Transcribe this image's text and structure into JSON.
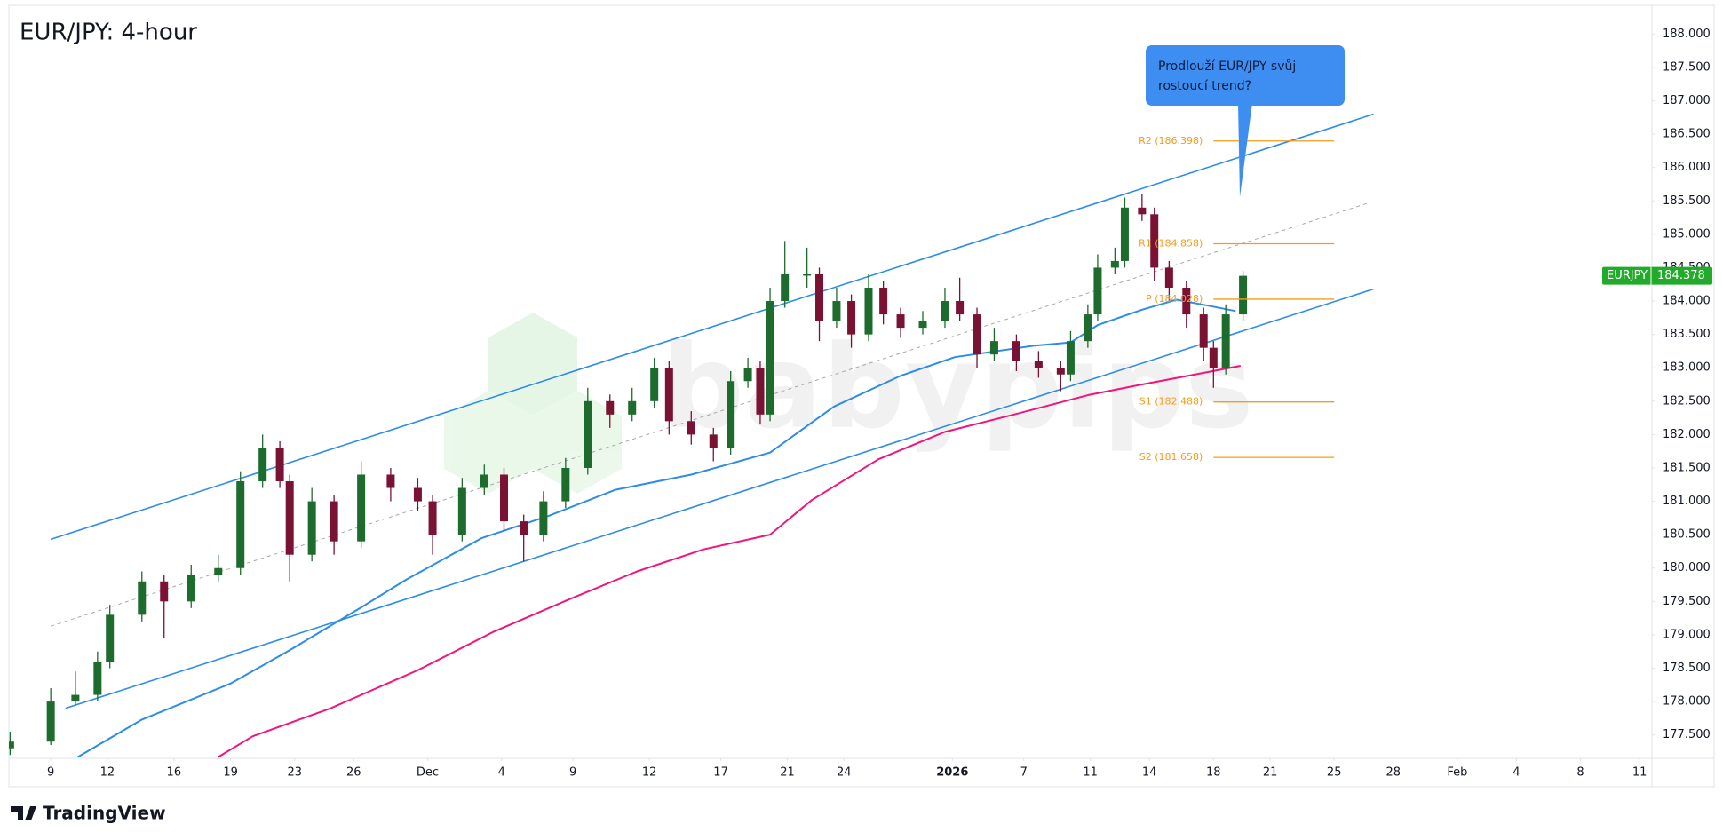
{
  "chart_data": {
    "type": "candlestick",
    "title": "EUR/JPY: 4-hour",
    "watermark": "babypips",
    "brand": "TradingView",
    "up_color": "#1e6b2e",
    "down_color": "#7a1233",
    "xlim": [
      -1.7,
      65.0
    ],
    "ylim": [
      177.15,
      188.43
    ],
    "xticks": [
      {
        "value": 0,
        "label": "9"
      },
      {
        "value": 2.3,
        "label": "12"
      },
      {
        "value": 5.0,
        "label": "16"
      },
      {
        "value": 7.3,
        "label": "19"
      },
      {
        "value": 9.9,
        "label": "23"
      },
      {
        "value": 12.3,
        "label": "26"
      },
      {
        "value": 15.3,
        "label": "Dec"
      },
      {
        "value": 18.3,
        "label": "4"
      },
      {
        "value": 21.2,
        "label": "9"
      },
      {
        "value": 24.3,
        "label": "12"
      },
      {
        "value": 27.2,
        "label": "17"
      },
      {
        "value": 29.9,
        "label": "21"
      },
      {
        "value": 32.2,
        "label": "24"
      },
      {
        "value": 36.6,
        "label": "2026",
        "bold": true
      },
      {
        "value": 39.5,
        "label": "7"
      },
      {
        "value": 42.2,
        "label": "11"
      },
      {
        "value": 44.6,
        "label": "14"
      },
      {
        "value": 47.2,
        "label": "18"
      },
      {
        "value": 49.5,
        "label": "21"
      },
      {
        "value": 52.1,
        "label": "25"
      },
      {
        "value": 54.5,
        "label": "28"
      },
      {
        "value": 57.1,
        "label": "Feb"
      },
      {
        "value": 59.5,
        "label": "4"
      },
      {
        "value": 62.1,
        "label": "8"
      },
      {
        "value": 64.5,
        "label": "11"
      }
    ],
    "yticks": [
      {
        "value": 188,
        "label": "188.000"
      },
      {
        "value": 187.5,
        "label": "187.500"
      },
      {
        "value": 187,
        "label": "187.000"
      },
      {
        "value": 186.5,
        "label": "186.500"
      },
      {
        "value": 186,
        "label": "186.000"
      },
      {
        "value": 185.5,
        "label": "185.500"
      },
      {
        "value": 185,
        "label": "185.000"
      },
      {
        "value": 184.5,
        "label": "184.500"
      },
      {
        "value": 184,
        "label": "184.000"
      },
      {
        "value": 183.5,
        "label": "183.500"
      },
      {
        "value": 183,
        "label": "183.000"
      },
      {
        "value": 182.5,
        "label": "182.500"
      },
      {
        "value": 182,
        "label": "182.000"
      },
      {
        "value": 181.5,
        "label": "181.500"
      },
      {
        "value": 181,
        "label": "181.000"
      },
      {
        "value": 180.5,
        "label": "180.500"
      },
      {
        "value": 180,
        "label": "180.000"
      },
      {
        "value": 179.5,
        "label": "179.500"
      },
      {
        "value": 179,
        "label": "179.000"
      },
      {
        "value": 178.5,
        "label": "178.500"
      },
      {
        "value": 178,
        "label": "178.000"
      },
      {
        "value": 177.5,
        "label": "177.500"
      }
    ],
    "candles": [
      {
        "x": -1.65,
        "open": 177.3,
        "high": 177.55,
        "low": 177.2,
        "close": 177.4
      },
      {
        "x": 0,
        "open": 177.4,
        "high": 178.2,
        "low": 177.35,
        "close": 178.0
      },
      {
        "x": 1.0,
        "open": 178.0,
        "high": 178.45,
        "low": 177.95,
        "close": 178.1
      },
      {
        "x": 1.9,
        "open": 178.1,
        "high": 178.75,
        "low": 178.0,
        "close": 178.6
      },
      {
        "x": 2.4,
        "open": 178.6,
        "high": 179.45,
        "low": 178.5,
        "close": 179.3
      },
      {
        "x": 3.7,
        "open": 179.3,
        "high": 179.95,
        "low": 179.2,
        "close": 179.8
      },
      {
        "x": 4.6,
        "open": 179.8,
        "high": 179.9,
        "low": 178.95,
        "close": 179.5
      },
      {
        "x": 5.7,
        "open": 179.5,
        "high": 180.05,
        "low": 179.4,
        "close": 179.9
      },
      {
        "x": 6.8,
        "open": 179.9,
        "high": 180.2,
        "low": 179.8,
        "close": 180.0
      },
      {
        "x": 7.7,
        "open": 180.0,
        "high": 181.45,
        "low": 179.9,
        "close": 181.3
      },
      {
        "x": 8.6,
        "open": 181.3,
        "high": 182.0,
        "low": 181.2,
        "close": 181.8
      },
      {
        "x": 9.3,
        "open": 181.8,
        "high": 181.9,
        "low": 181.2,
        "close": 181.3
      },
      {
        "x": 9.7,
        "open": 181.3,
        "high": 181.4,
        "low": 179.8,
        "close": 180.2
      },
      {
        "x": 10.6,
        "open": 180.2,
        "high": 181.2,
        "low": 180.1,
        "close": 181.0
      },
      {
        "x": 11.5,
        "open": 181.0,
        "high": 181.1,
        "low": 180.2,
        "close": 180.4
      },
      {
        "x": 12.6,
        "open": 180.4,
        "high": 181.6,
        "low": 180.3,
        "close": 181.4
      },
      {
        "x": 13.8,
        "open": 181.4,
        "high": 181.5,
        "low": 181.0,
        "close": 181.2
      },
      {
        "x": 14.9,
        "open": 181.2,
        "high": 181.35,
        "low": 180.85,
        "close": 181.0
      },
      {
        "x": 15.5,
        "open": 181.0,
        "high": 181.1,
        "low": 180.2,
        "close": 180.5
      },
      {
        "x": 16.7,
        "open": 180.5,
        "high": 181.35,
        "low": 180.4,
        "close": 181.2
      },
      {
        "x": 17.6,
        "open": 181.2,
        "high": 181.55,
        "low": 181.1,
        "close": 181.4
      },
      {
        "x": 18.4,
        "open": 181.4,
        "high": 181.5,
        "low": 180.55,
        "close": 180.7
      },
      {
        "x": 19.2,
        "open": 180.7,
        "high": 180.8,
        "low": 180.1,
        "close": 180.5
      },
      {
        "x": 20.0,
        "open": 180.5,
        "high": 181.15,
        "low": 180.4,
        "close": 181.0
      },
      {
        "x": 20.9,
        "open": 181.0,
        "high": 181.65,
        "low": 180.9,
        "close": 181.5
      },
      {
        "x": 21.8,
        "open": 181.5,
        "high": 182.7,
        "low": 181.4,
        "close": 182.5
      },
      {
        "x": 22.7,
        "open": 182.5,
        "high": 182.6,
        "low": 182.1,
        "close": 182.3
      },
      {
        "x": 23.6,
        "open": 182.3,
        "high": 182.7,
        "low": 182.2,
        "close": 182.5
      },
      {
        "x": 24.5,
        "open": 182.5,
        "high": 183.15,
        "low": 182.4,
        "close": 183.0
      },
      {
        "x": 25.1,
        "open": 183.0,
        "high": 183.1,
        "low": 182.0,
        "close": 182.2
      },
      {
        "x": 26.0,
        "open": 182.2,
        "high": 182.35,
        "low": 181.85,
        "close": 182.0
      },
      {
        "x": 26.9,
        "open": 182.0,
        "high": 182.1,
        "low": 181.6,
        "close": 181.8
      },
      {
        "x": 27.6,
        "open": 181.8,
        "high": 182.95,
        "low": 181.7,
        "close": 182.8
      },
      {
        "x": 28.3,
        "open": 182.8,
        "high": 183.15,
        "low": 182.7,
        "close": 183.0
      },
      {
        "x": 28.8,
        "open": 183.0,
        "high": 183.1,
        "low": 182.15,
        "close": 182.3
      },
      {
        "x": 29.2,
        "open": 182.3,
        "high": 184.2,
        "low": 182.2,
        "close": 184.0
      },
      {
        "x": 29.8,
        "open": 184.0,
        "high": 184.9,
        "low": 183.9,
        "close": 184.4
      },
      {
        "x": 30.7,
        "open": 184.4,
        "high": 184.8,
        "low": 184.2,
        "close": 184.4
      },
      {
        "x": 31.2,
        "open": 184.4,
        "high": 184.5,
        "low": 183.4,
        "close": 183.7
      },
      {
        "x": 31.9,
        "open": 183.7,
        "high": 184.2,
        "low": 183.6,
        "close": 184.0
      },
      {
        "x": 32.5,
        "open": 184.0,
        "high": 184.1,
        "low": 183.3,
        "close": 183.5
      },
      {
        "x": 33.2,
        "open": 183.5,
        "high": 184.4,
        "low": 183.4,
        "close": 184.2
      },
      {
        "x": 33.8,
        "open": 184.2,
        "high": 184.3,
        "low": 183.65,
        "close": 183.8
      },
      {
        "x": 34.5,
        "open": 183.8,
        "high": 183.9,
        "low": 183.45,
        "close": 183.6
      },
      {
        "x": 35.4,
        "open": 183.6,
        "high": 183.85,
        "low": 183.5,
        "close": 183.7
      },
      {
        "x": 36.3,
        "open": 183.7,
        "high": 184.2,
        "low": 183.6,
        "close": 184.0
      },
      {
        "x": 36.9,
        "open": 184.0,
        "high": 184.35,
        "low": 183.7,
        "close": 183.8
      },
      {
        "x": 37.6,
        "open": 183.8,
        "high": 183.9,
        "low": 183.0,
        "close": 183.2
      },
      {
        "x": 38.3,
        "open": 183.2,
        "high": 183.6,
        "low": 183.1,
        "close": 183.4
      },
      {
        "x": 39.2,
        "open": 183.4,
        "high": 183.5,
        "low": 182.95,
        "close": 183.1
      },
      {
        "x": 40.1,
        "open": 183.1,
        "high": 183.25,
        "low": 182.85,
        "close": 183.0
      },
      {
        "x": 41.0,
        "open": 183.0,
        "high": 183.1,
        "low": 182.65,
        "close": 182.9
      },
      {
        "x": 41.4,
        "open": 182.9,
        "high": 183.55,
        "low": 182.8,
        "close": 183.4
      },
      {
        "x": 42.1,
        "open": 183.4,
        "high": 183.95,
        "low": 183.3,
        "close": 183.8
      },
      {
        "x": 42.5,
        "open": 183.8,
        "high": 184.7,
        "low": 183.7,
        "close": 184.5
      },
      {
        "x": 43.2,
        "open": 184.5,
        "high": 184.8,
        "low": 184.4,
        "close": 184.6
      },
      {
        "x": 43.6,
        "open": 184.6,
        "high": 185.55,
        "low": 184.5,
        "close": 185.4
      },
      {
        "x": 44.3,
        "open": 185.4,
        "high": 185.6,
        "low": 185.2,
        "close": 185.3
      },
      {
        "x": 44.8,
        "open": 185.3,
        "high": 185.4,
        "low": 184.3,
        "close": 184.5
      },
      {
        "x": 45.4,
        "open": 184.5,
        "high": 184.6,
        "low": 184.0,
        "close": 184.2
      },
      {
        "x": 46.1,
        "open": 184.2,
        "high": 184.3,
        "low": 183.6,
        "close": 183.8
      },
      {
        "x": 46.8,
        "open": 183.8,
        "high": 183.9,
        "low": 183.1,
        "close": 183.3
      },
      {
        "x": 47.2,
        "open": 183.3,
        "high": 183.4,
        "low": 182.7,
        "close": 183.0
      },
      {
        "x": 47.7,
        "open": 183.0,
        "high": 183.95,
        "low": 182.9,
        "close": 183.8
      },
      {
        "x": 48.4,
        "open": 183.8,
        "high": 184.45,
        "low": 183.7,
        "close": 184.378
      }
    ],
    "moving_averages": [
      {
        "color": "#2d8ce6",
        "x": [
          1.1,
          3.7,
          7.3,
          9.7,
          12.6,
          14.4,
          17.5,
          20.2,
          22.9,
          26.0,
          29.2,
          31.8,
          34.5,
          36.7,
          39.9,
          41.4,
          42.5,
          44.3,
          45.7,
          47.0,
          48.1
        ],
        "values": [
          177.17,
          177.73,
          178.27,
          178.77,
          179.41,
          179.82,
          180.45,
          180.78,
          181.17,
          181.4,
          181.73,
          182.42,
          182.88,
          183.16,
          183.33,
          183.38,
          183.64,
          183.87,
          184.02,
          183.93,
          183.85
        ]
      },
      {
        "color": "#f0157c",
        "x": [
          6.8,
          8.2,
          11.3,
          14.9,
          18.0,
          21.1,
          23.8,
          26.5,
          29.2,
          30.9,
          33.6,
          36.3,
          39.0,
          42.1,
          44.3,
          46.6,
          48.3
        ],
        "values": [
          177.17,
          177.48,
          177.89,
          178.47,
          179.05,
          179.54,
          179.95,
          180.28,
          180.5,
          181.02,
          181.63,
          182.04,
          182.29,
          182.59,
          182.75,
          182.91,
          183.03
        ]
      }
    ],
    "channels": [
      {
        "color": "#2d8ce6",
        "dashed": false,
        "x": [
          0,
          53.7
        ],
        "values": [
          180.43,
          186.8
        ]
      },
      {
        "color": "#2d8ce6",
        "dashed": false,
        "x": [
          0.6,
          53.7
        ],
        "values": [
          177.9,
          184.18
        ]
      },
      {
        "color": "#a8a8a8",
        "dashed": true,
        "x": [
          0,
          53.5
        ],
        "values": [
          179.13,
          185.47
        ]
      }
    ],
    "pivot_color": "#f59c1a",
    "pivot_span": [
      47.2,
      52.1
    ],
    "pivots": [
      {
        "label": "R2 (186.398)",
        "value": 186.398
      },
      {
        "label": "R1 (184.858)",
        "value": 184.858
      },
      {
        "label": "P (184.028)",
        "value": 184.028
      },
      {
        "label": "S1 (182.488)",
        "value": 182.488
      },
      {
        "label": "S2 (181.658)",
        "value": 181.658
      }
    ],
    "callout": {
      "lines": [
        "Prodlouží EUR/JPY svůj",
        "rostoucí trend?"
      ]
    },
    "price_label": {
      "symbol": "EURJPY",
      "value": 184.378,
      "label": "184.378",
      "color": "#22ab2a"
    }
  }
}
